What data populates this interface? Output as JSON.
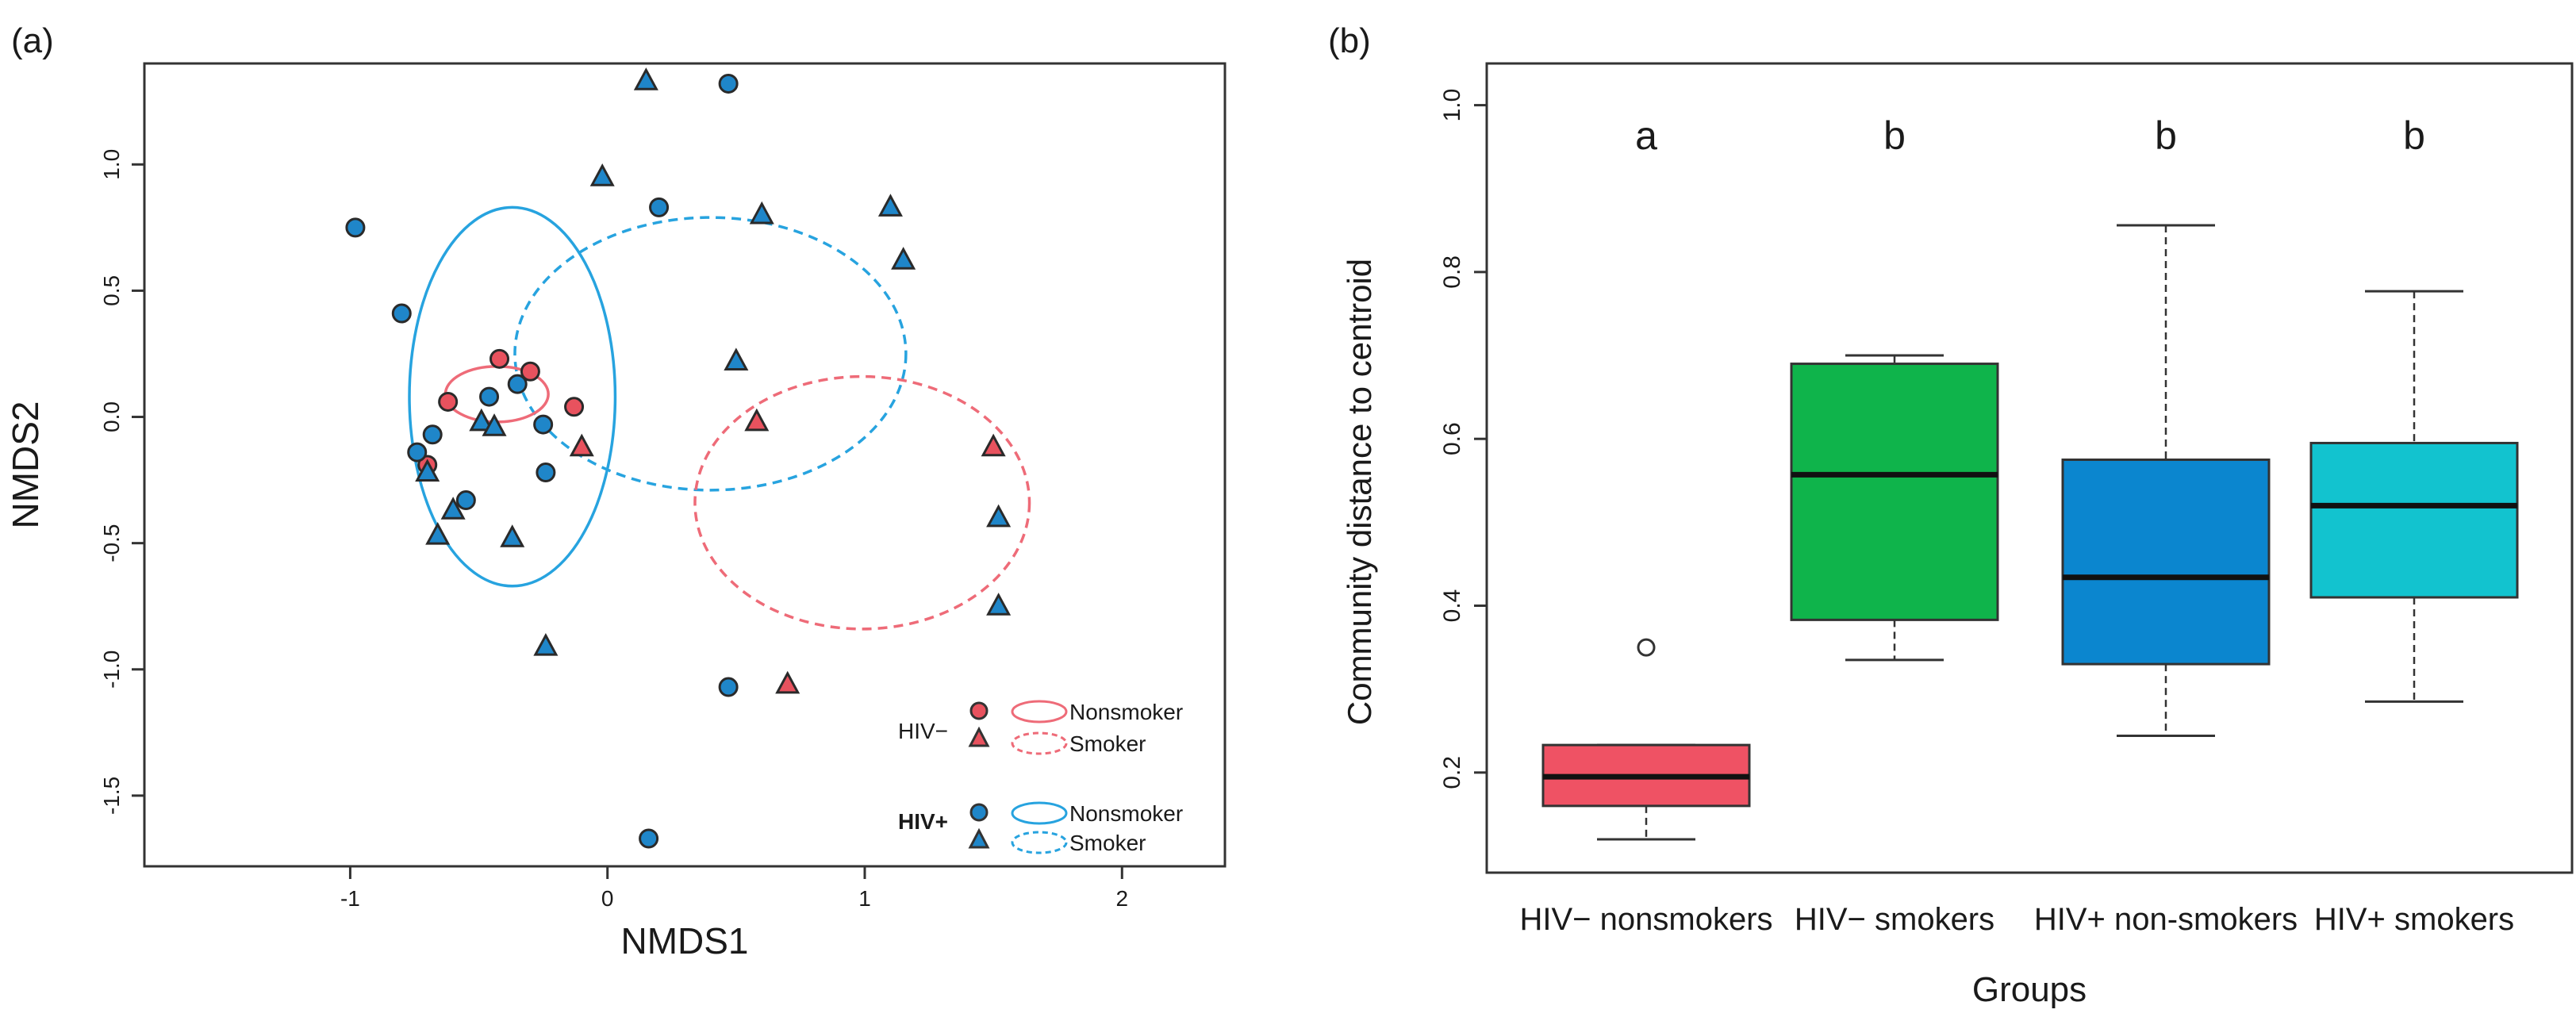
{
  "colors": {
    "hiv_neg": "#e8525e",
    "hiv_pos": "#1f86c9",
    "ell_hiv_pos": "#27a3df",
    "ell_hiv_neg": "#ee6b78",
    "box_hivneg_nonsmk": "#ef5264",
    "box_hivneg_smk": "#0fb44b",
    "box_hivpos_nonsmk": "#0b86cf",
    "box_hivpos_smk": "#12c3cf"
  },
  "chart_data": [
    {
      "panel": "(a)",
      "type": "scatter",
      "xlabel": "NMDS1",
      "ylabel": "NMDS2",
      "xlim": [
        -1.8,
        2.4
      ],
      "ylim": [
        -1.78,
        1.4
      ],
      "xticks": [
        -1,
        0,
        1,
        2
      ],
      "yticks": [
        -1.5,
        -1.0,
        -0.5,
        0.0,
        0.5,
        1.0
      ],
      "xtick_labels": [
        "-1",
        "0",
        "1",
        "2"
      ],
      "ytick_labels": [
        "-1.5",
        "-1.0",
        "-0.5",
        "0.0",
        "0.5",
        "1.0"
      ],
      "series": [
        {
          "name": "HIV− Nonsmoker",
          "shape": "circle",
          "color_key": "hiv_neg",
          "points": [
            [
              -0.42,
              0.23
            ],
            [
              -0.3,
              0.18
            ],
            [
              -0.62,
              0.06
            ],
            [
              -0.13,
              0.04
            ],
            [
              -0.7,
              -0.19
            ]
          ]
        },
        {
          "name": "HIV− Smoker",
          "shape": "triangle",
          "color_key": "hiv_neg",
          "points": [
            [
              -0.1,
              -0.12
            ],
            [
              0.58,
              -0.02
            ],
            [
              1.5,
              -0.12
            ],
            [
              0.7,
              -1.06
            ]
          ]
        },
        {
          "name": "HIV+ Nonsmoker",
          "shape": "circle",
          "color_key": "hiv_pos",
          "points": [
            [
              -0.98,
              0.75
            ],
            [
              -0.8,
              0.41
            ],
            [
              -0.35,
              0.13
            ],
            [
              -0.46,
              0.08
            ],
            [
              -0.25,
              -0.03
            ],
            [
              -0.68,
              -0.07
            ],
            [
              -0.74,
              -0.14
            ],
            [
              -0.24,
              -0.22
            ],
            [
              -0.55,
              -0.33
            ],
            [
              0.2,
              0.83
            ],
            [
              0.47,
              1.32
            ],
            [
              0.47,
              -1.07
            ],
            [
              0.16,
              -1.67
            ]
          ]
        },
        {
          "name": "HIV+ Smoker",
          "shape": "triangle",
          "color_key": "hiv_pos",
          "points": [
            [
              0.15,
              1.33
            ],
            [
              -0.02,
              0.95
            ],
            [
              0.6,
              0.8
            ],
            [
              1.1,
              0.83
            ],
            [
              1.15,
              0.62
            ],
            [
              0.5,
              0.22
            ],
            [
              -0.49,
              -0.02
            ],
            [
              -0.44,
              -0.04
            ],
            [
              -0.7,
              -0.22
            ],
            [
              -0.6,
              -0.37
            ],
            [
              -0.66,
              -0.47
            ],
            [
              -0.37,
              -0.48
            ],
            [
              -0.24,
              -0.91
            ],
            [
              1.52,
              -0.4
            ],
            [
              1.52,
              -0.75
            ]
          ]
        }
      ],
      "ellipses": [
        {
          "name": "HIV+ Nonsmoker",
          "color_key": "ell_hiv_pos",
          "dashed": false,
          "center": [
            -0.37,
            0.08
          ],
          "radii": [
            0.4,
            0.75
          ]
        },
        {
          "name": "HIV+ Smoker",
          "color_key": "ell_hiv_pos",
          "dashed": true,
          "center": [
            0.4,
            0.25
          ],
          "radii": [
            0.76,
            0.54
          ]
        },
        {
          "name": "HIV− Nonsmoker",
          "color_key": "ell_hiv_neg",
          "dashed": false,
          "center": [
            -0.43,
            0.09
          ],
          "radii": [
            0.2,
            0.11
          ]
        },
        {
          "name": "HIV− Smoker",
          "color_key": "ell_hiv_neg",
          "dashed": true,
          "center": [
            0.99,
            -0.34
          ],
          "radii": [
            0.65,
            0.5
          ]
        }
      ],
      "legend": {
        "placement": "bottom-right",
        "group_labels": [
          "HIV−",
          "HIV+"
        ],
        "entries": [
          "Nonsmoker",
          "Smoker",
          "Nonsmoker",
          "Smoker"
        ]
      }
    },
    {
      "panel": "(b)",
      "type": "box",
      "xlabel": "Groups",
      "ylabel": "Community distance to centroid",
      "ylim": [
        0.08,
        1.05
      ],
      "yticks": [
        0.2,
        0.4,
        0.6,
        0.8,
        1.0
      ],
      "ytick_labels": [
        "0.2",
        "0.4",
        "0.6",
        "0.8",
        "1.0"
      ],
      "categories": [
        "HIV− nonsmokers",
        "HIV− smokers",
        "HIV+ non-smokers",
        "HIV+ smokers"
      ],
      "significance_letters": [
        "a",
        "b",
        "b",
        "b"
      ],
      "boxes": [
        {
          "whisker_low": 0.12,
          "q1": 0.16,
          "median": 0.195,
          "q3": 0.233,
          "whisker_high": 0.233,
          "outliers": [
            0.35
          ],
          "color_key": "box_hivneg_nonsmk"
        },
        {
          "whisker_low": 0.335,
          "q1": 0.383,
          "median": 0.557,
          "q3": 0.69,
          "whisker_high": 0.7,
          "outliers": [],
          "color_key": "box_hivneg_smk"
        },
        {
          "whisker_low": 0.244,
          "q1": 0.33,
          "median": 0.434,
          "q3": 0.575,
          "whisker_high": 0.856,
          "outliers": [],
          "color_key": "box_hivpos_nonsmk"
        },
        {
          "whisker_low": 0.285,
          "q1": 0.41,
          "median": 0.52,
          "q3": 0.595,
          "whisker_high": 0.777,
          "outliers": [],
          "color_key": "box_hivpos_smk"
        }
      ]
    }
  ]
}
